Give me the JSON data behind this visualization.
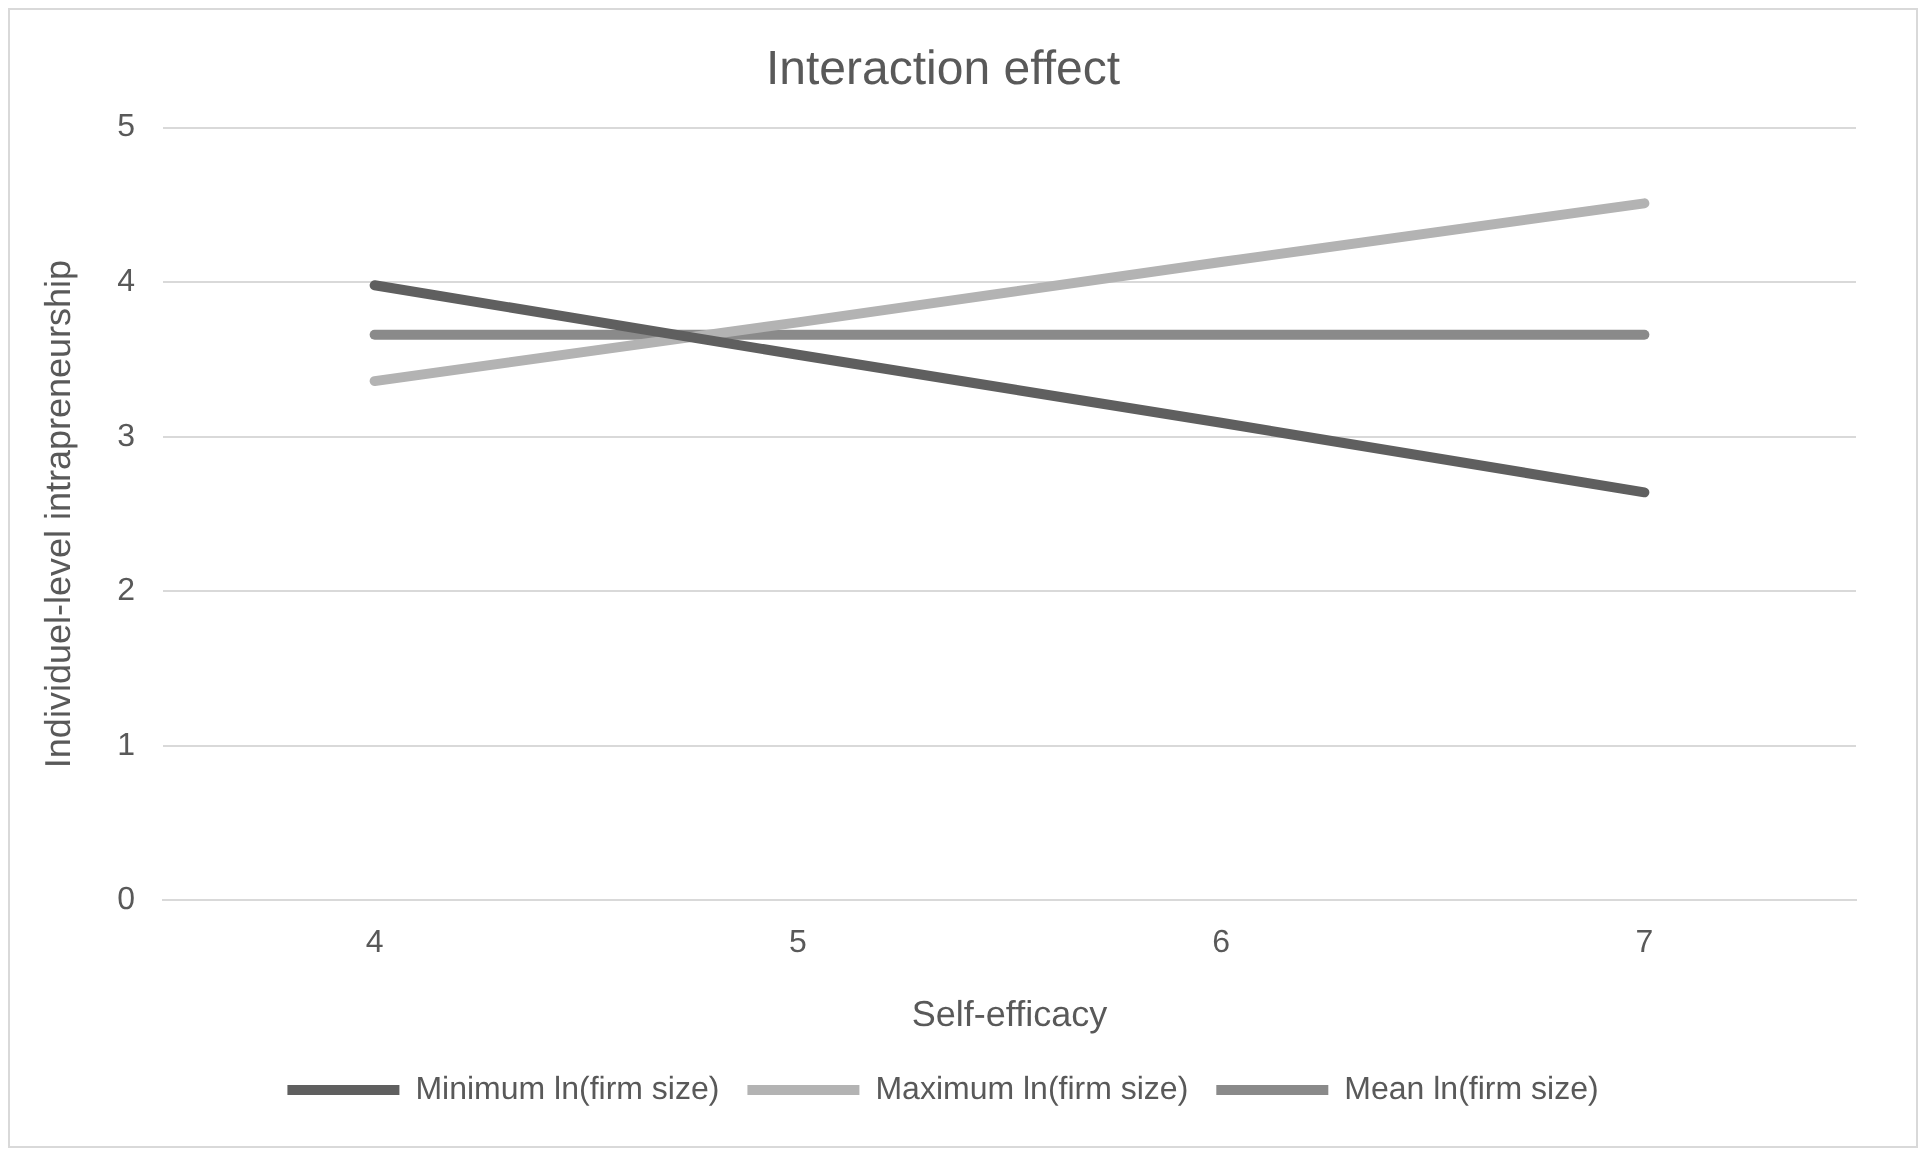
{
  "chart_data": {
    "type": "line",
    "title": "Interaction effect",
    "xlabel": "Self-efficacy",
    "ylabel": "Individuel-level intrapreneurship",
    "categories": [
      "4",
      "5",
      "6",
      "7"
    ],
    "series": [
      {
        "name": "Minimum ln(firm size)",
        "color": "#5f5f5f",
        "values": [
          3.98,
          3.53,
          3.09,
          2.64
        ]
      },
      {
        "name": "Maximum ln(firm size)",
        "color": "#b3b3b3",
        "values": [
          3.36,
          3.74,
          4.13,
          4.51
        ]
      },
      {
        "name": "Mean ln(firm size)",
        "color": "#8a8a8a",
        "values": [
          3.66,
          3.66,
          3.66,
          3.66
        ]
      }
    ],
    "ylim": [
      0,
      5
    ],
    "yticks": [
      0,
      1,
      2,
      3,
      4,
      5
    ],
    "grid": "y",
    "legend": "bottom",
    "marker": "none",
    "line_style": "solid"
  }
}
